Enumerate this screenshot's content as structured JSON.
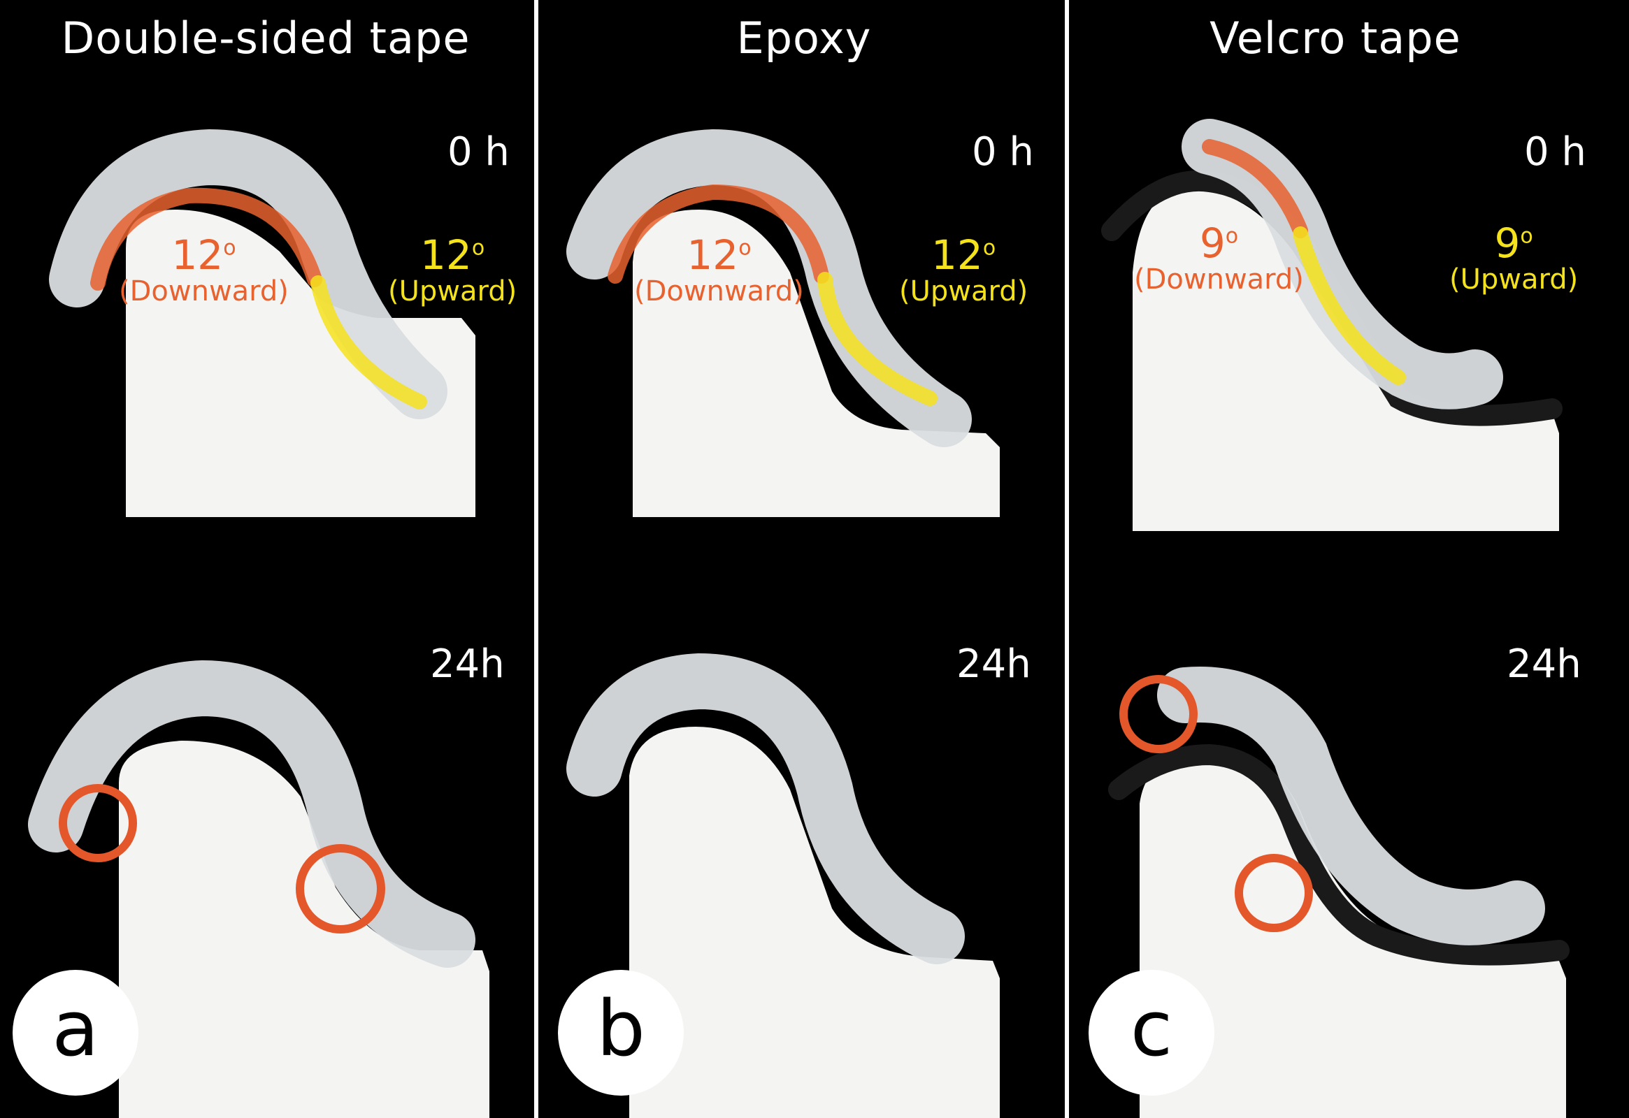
{
  "colors": {
    "downward": "#e8622f",
    "upward": "#f4e21c",
    "circle": "#e4572a",
    "block": "#f4f4f2",
    "background": "#000000"
  },
  "panels": [
    {
      "id": "a",
      "title": "Double-sided tape",
      "time_top": "0 h",
      "time_bottom": "24h",
      "downward": {
        "angle": "12",
        "sup": "o",
        "label": "(Downward)"
      },
      "upward": {
        "angle": "12",
        "sup": "o",
        "label": "(Upward)"
      }
    },
    {
      "id": "b",
      "title": "Epoxy",
      "time_top": "0 h",
      "time_bottom": "24h",
      "downward": {
        "angle": "12",
        "sup": "o",
        "label": "(Downward)"
      },
      "upward": {
        "angle": "12",
        "sup": "o",
        "label": "(Upward)"
      }
    },
    {
      "id": "c",
      "title": "Velcro tape",
      "time_top": "0 h",
      "time_bottom": "24h",
      "downward": {
        "angle": "9",
        "sup": "o",
        "label": "(Downward)"
      },
      "upward": {
        "angle": "9",
        "sup": "o",
        "label": "(Upward)"
      }
    }
  ]
}
